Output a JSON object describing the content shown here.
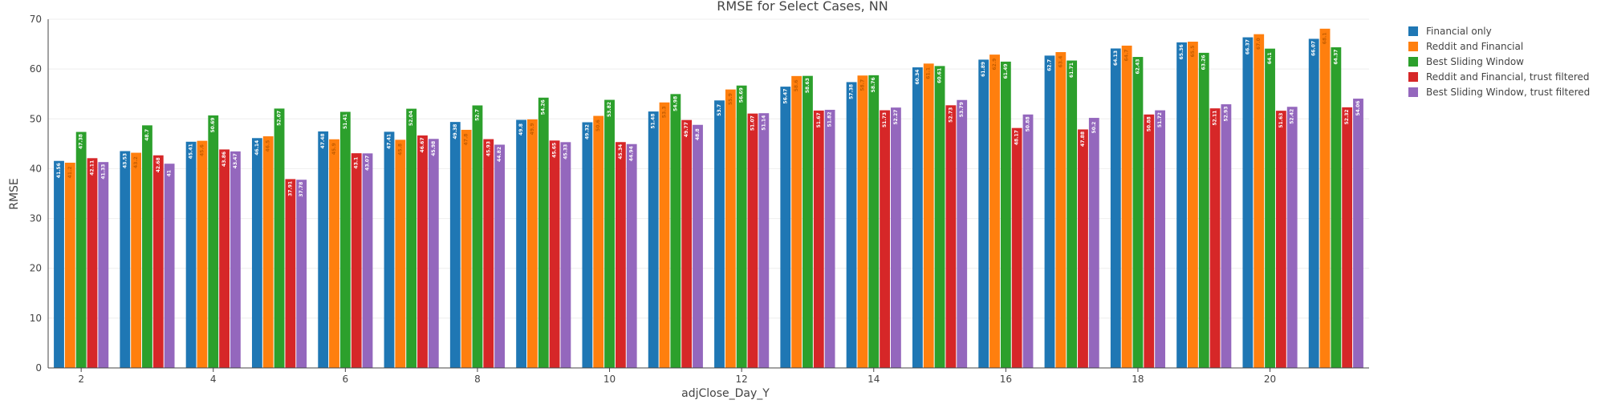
{
  "chart_data": {
    "type": "bar",
    "title": "RMSE for Select Cases, NN",
    "xlabel": "adjClose_Day_Y",
    "ylabel": "RMSE",
    "ylim": [
      0,
      70
    ],
    "yticks": [
      "0",
      "10",
      "20",
      "30",
      "40",
      "50",
      "60",
      "70"
    ],
    "xticks": [
      "2",
      "4",
      "6",
      "8",
      "10",
      "12",
      "14",
      "16",
      "18",
      "20"
    ],
    "grid": true,
    "legend_position": "top-right",
    "categories": [
      2,
      3,
      4,
      5,
      6,
      7,
      8,
      9,
      10,
      11,
      12,
      13,
      14,
      15,
      16,
      17,
      18,
      19,
      20,
      21
    ],
    "series": [
      {
        "name": "Financial only",
        "color": "#1f77b4",
        "values": [
          41.56,
          43.53,
          45.41,
          46.14,
          47.48,
          47.41,
          49.38,
          49.8,
          49.32,
          51.48,
          53.7,
          56.47,
          57.38,
          60.34,
          61.89,
          62.7,
          64.13,
          65.36,
          66.37,
          66.07
        ],
        "labels": [
          "41.56",
          "43.53",
          "45.41",
          "46.14",
          "47.48",
          "47.41",
          "49.38",
          "49.8",
          "49.32",
          "51.48",
          "53.7",
          "56.47",
          "57.38",
          "60.34",
          "61.89",
          "62.7",
          "64.13",
          "65.36",
          "66.37",
          "66.07"
        ]
      },
      {
        "name": "Reddit and Financial",
        "color": "#ff7f0e",
        "values": [
          41.2,
          43.2,
          45.6,
          46.5,
          45.9,
          45.8,
          47.8,
          49.9,
          50.6,
          53.3,
          55.9,
          58.6,
          58.7,
          61.1,
          62.9,
          63.4,
          64.7,
          65.5,
          67.0,
          68.1
        ],
        "labels": [
          "41.2",
          "43.2",
          "45.6",
          "46.5",
          "45.9",
          "45.8",
          "47.8",
          "49.9",
          "50.6",
          "53.3",
          "55.9",
          "58.6",
          "58.7",
          "61.1",
          "62.9",
          "63.4",
          "64.7",
          "65.5",
          "67.0",
          "68.1"
        ]
      },
      {
        "name": "Best Sliding Window",
        "color": "#2ca02c",
        "values": [
          47.38,
          48.7,
          50.69,
          52.07,
          51.41,
          52.04,
          52.7,
          54.26,
          53.82,
          54.98,
          56.69,
          58.63,
          58.76,
          60.61,
          61.49,
          61.71,
          62.43,
          63.26,
          64.1,
          64.37
        ],
        "labels": [
          "47.38",
          "48.7",
          "50.69",
          "52.07",
          "51.41",
          "52.04",
          "52.7",
          "54.26",
          "53.82",
          "54.98",
          "56.69",
          "58.63",
          "58.76",
          "60.61",
          "61.49",
          "61.71",
          "62.43",
          "63.26",
          "64.1",
          "64.37"
        ]
      },
      {
        "name": "Reddit and Financial, trust filtered",
        "color": "#d62728",
        "values": [
          42.11,
          42.68,
          43.86,
          37.91,
          43.1,
          46.67,
          45.93,
          45.65,
          45.34,
          49.77,
          51.07,
          51.67,
          51.73,
          52.73,
          48.17,
          47.88,
          50.88,
          52.11,
          51.63,
          52.32
        ],
        "labels": [
          "42.11",
          "42.68",
          "43.86",
          "37.91",
          "43.1",
          "46.67",
          "45.93",
          "45.65",
          "45.34",
          "49.77",
          "51.07",
          "51.67",
          "51.73",
          "52.73",
          "48.17",
          "47.88",
          "50.88",
          "52.11",
          "51.63",
          "52.32"
        ]
      },
      {
        "name": "Best Sliding Window, trust filtered",
        "color": "#9467bd",
        "values": [
          41.33,
          41.0,
          43.47,
          37.78,
          43.07,
          45.98,
          44.82,
          45.33,
          44.94,
          48.8,
          51.14,
          51.82,
          52.27,
          53.79,
          50.88,
          50.2,
          51.72,
          52.93,
          52.42,
          54.06
        ],
        "labels": [
          "41.33",
          "41",
          "43.47",
          "37.78",
          "43.07",
          "45.98",
          "44.82",
          "45.33",
          "44.94",
          "48.8",
          "51.14",
          "51.82",
          "52.27",
          "53.79",
          "50.88",
          "50.2",
          "51.72",
          "52.93",
          "52.42",
          "54.06"
        ]
      }
    ]
  }
}
